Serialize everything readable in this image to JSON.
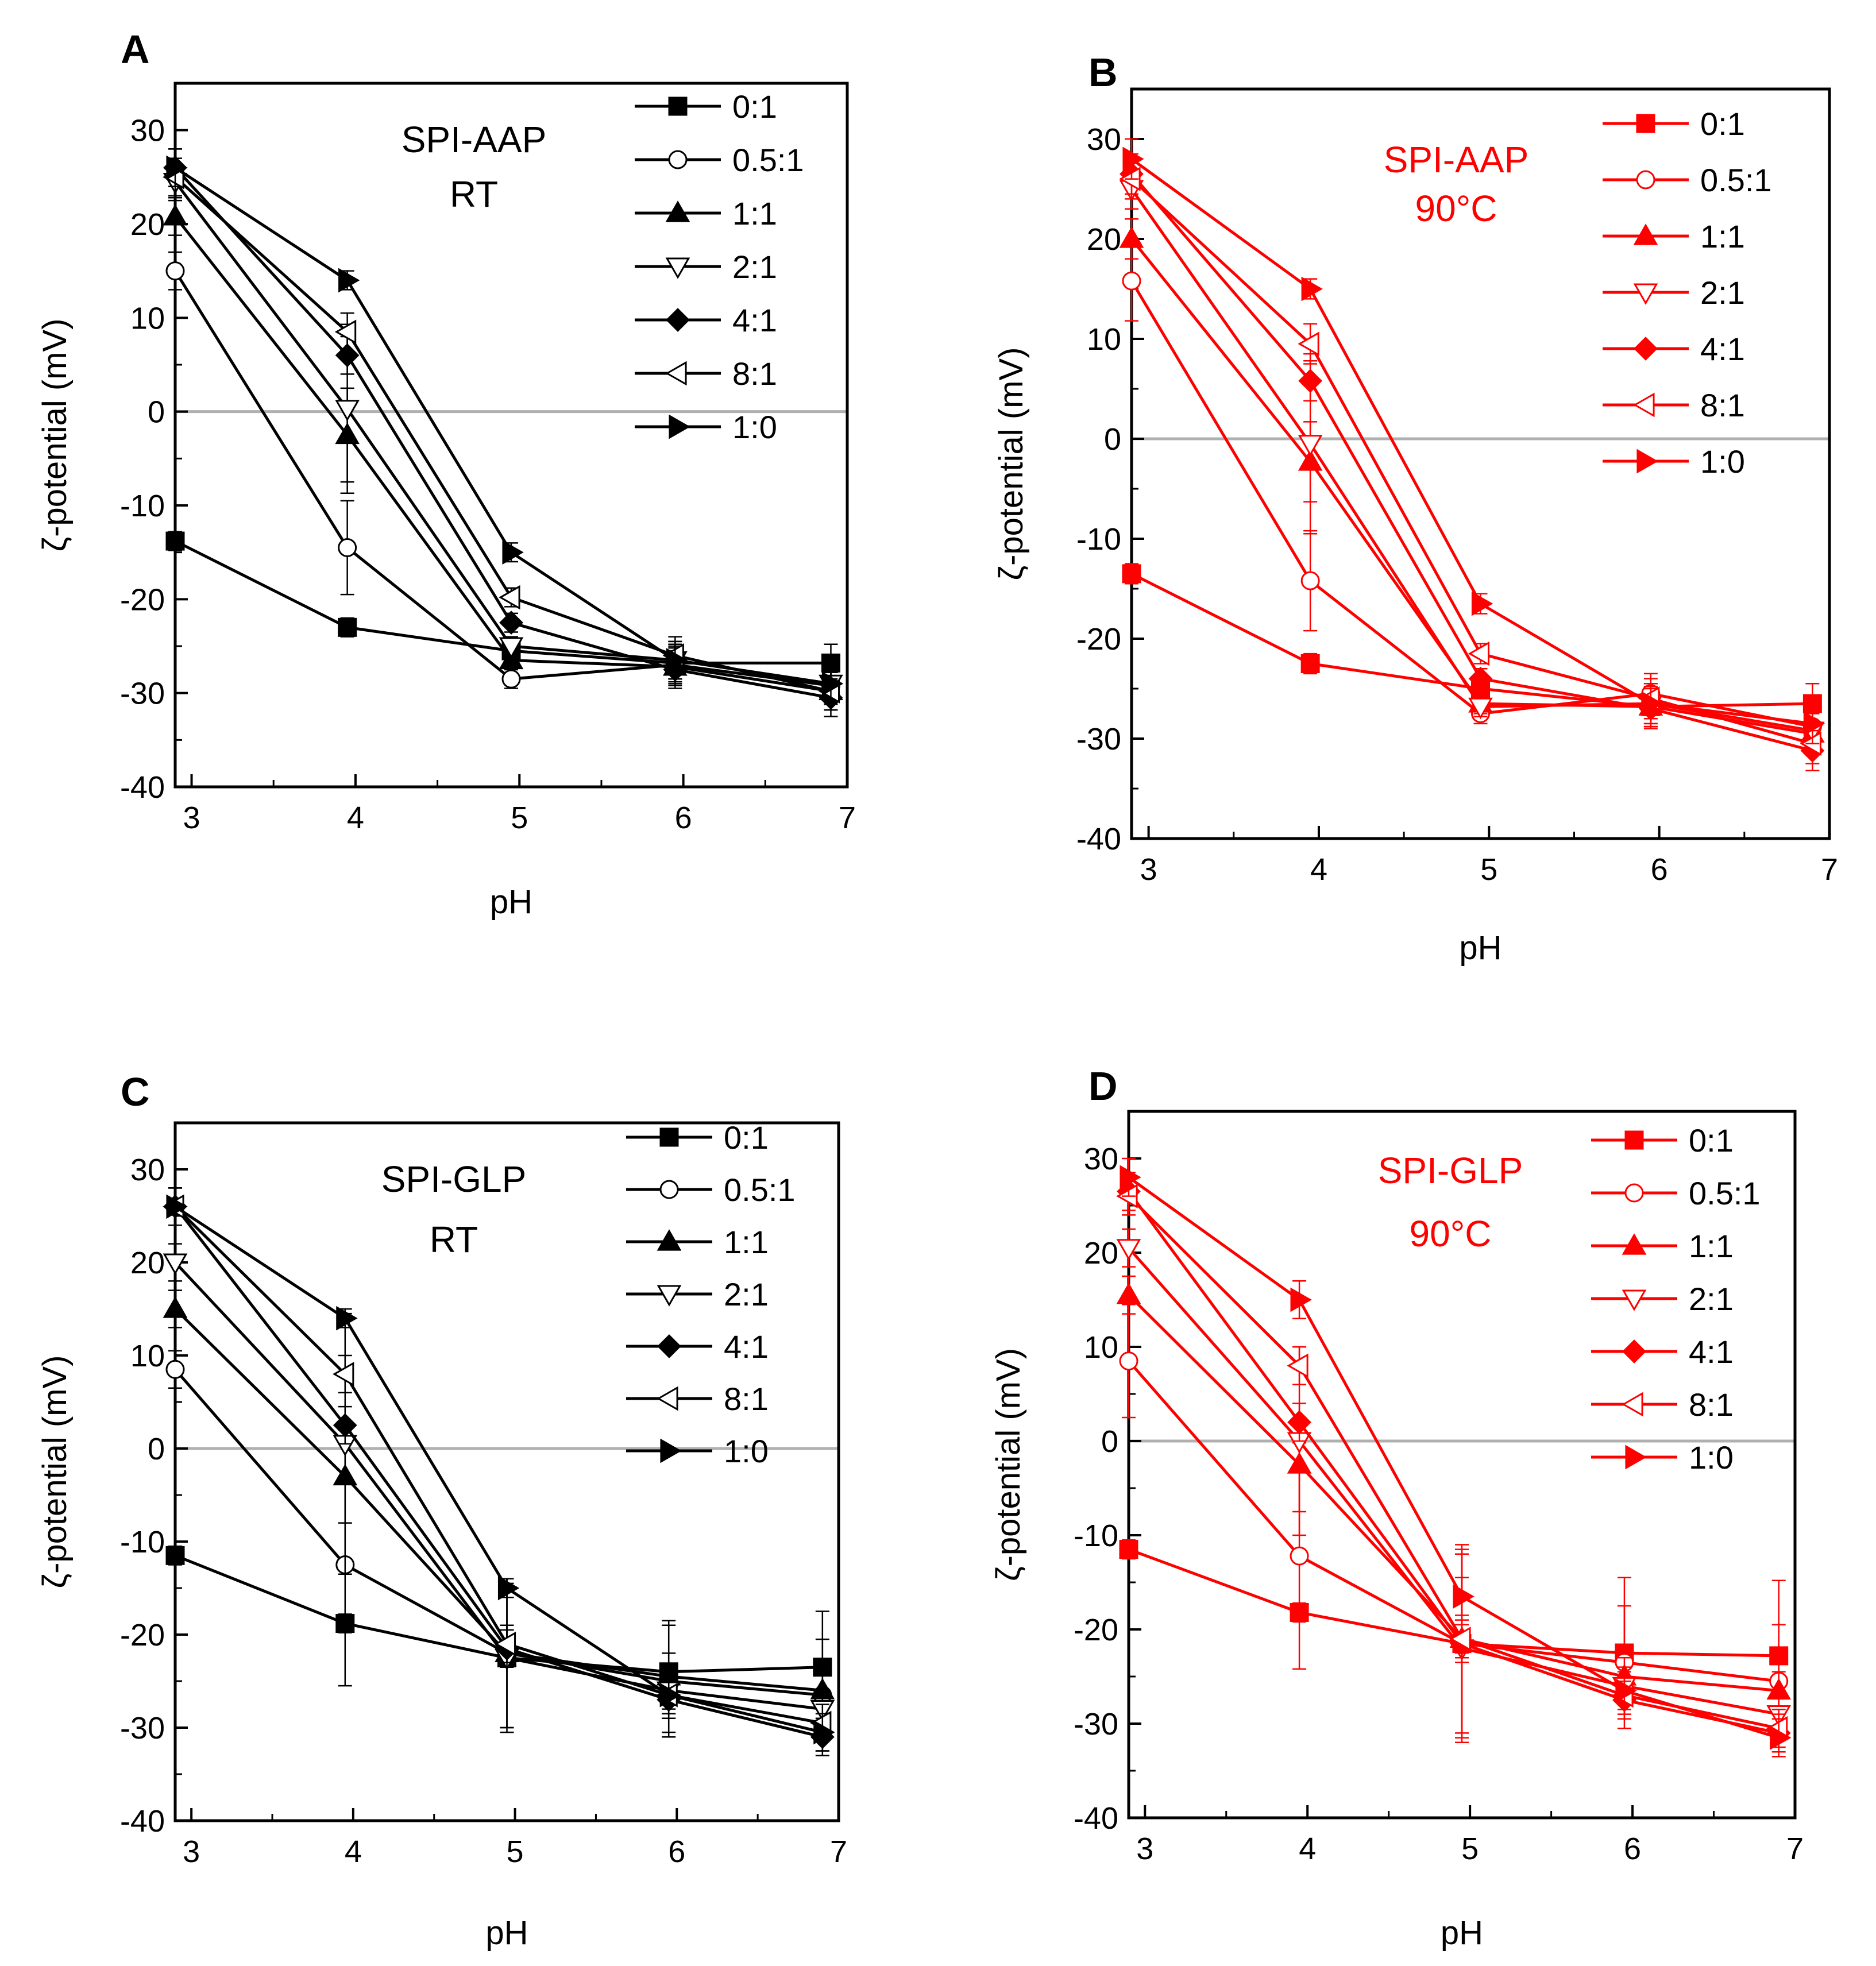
{
  "figure": {
    "panels": [
      {
        "letter": "A",
        "annotation": [
          "SPI-AAP",
          "RT"
        ],
        "color": "#000000"
      },
      {
        "letter": "B",
        "annotation": [
          "SPI-AAP",
          "90°C"
        ],
        "color": "#ff0000"
      },
      {
        "letter": "C",
        "annotation": [
          "SPI-GLP",
          "RT"
        ],
        "color": "#000000"
      },
      {
        "letter": "D",
        "annotation": [
          "SPI-GLP",
          "90°C"
        ],
        "color": "#ff0000"
      }
    ]
  },
  "chart_data": [
    {
      "type": "line",
      "panel": "A",
      "title": "",
      "annotation": [
        "SPI-AAP",
        "RT"
      ],
      "xlabel": "pH",
      "ylabel": "ζ-potential (mV)",
      "xlim": [
        2.9,
        7.0
      ],
      "ylim": [
        -40,
        35
      ],
      "xticks": [
        3,
        4,
        5,
        6,
        7
      ],
      "yticks": [
        -40,
        -30,
        -20,
        -10,
        0,
        10,
        20,
        30
      ],
      "x": [
        2.9,
        3.95,
        4.95,
        5.95,
        6.9
      ],
      "series": [
        {
          "name": "0:1",
          "marker": "square-filled",
          "values": [
            -13.8,
            -23.0,
            -25.5,
            -26.8,
            -26.8
          ],
          "err": [
            1,
            1,
            1,
            2,
            2
          ]
        },
        {
          "name": "0.5:1",
          "marker": "circle-open",
          "values": [
            15.0,
            -14.5,
            -28.5,
            -27.0,
            -29.2
          ],
          "err": [
            2,
            5,
            1,
            2,
            2
          ]
        },
        {
          "name": "1:1",
          "marker": "triangle-up-filled",
          "values": [
            20.8,
            -2.5,
            -26.5,
            -27.2,
            -29.8
          ],
          "err": [
            2,
            5,
            1,
            2,
            2
          ]
        },
        {
          "name": "2:1",
          "marker": "triangle-down-open",
          "values": [
            24.5,
            0.3,
            -25.0,
            -26.5,
            -29.0
          ],
          "err": [
            2,
            9,
            1,
            2,
            2
          ]
        },
        {
          "name": "4:1",
          "marker": "diamond-filled",
          "values": [
            26.0,
            6.0,
            -22.5,
            -27.5,
            -30.5
          ],
          "err": [
            2,
            2,
            1,
            2,
            2
          ]
        },
        {
          "name": "8:1",
          "marker": "triangle-left-open",
          "values": [
            25.0,
            8.5,
            -19.8,
            -26.0,
            -29.8
          ],
          "err": [
            2,
            2,
            1,
            2,
            2
          ]
        },
        {
          "name": "1:0",
          "marker": "triangle-right-filled",
          "values": [
            26.0,
            14.0,
            -15.0,
            -26.5,
            -29.0
          ],
          "err": [
            2,
            1,
            1,
            2,
            2
          ]
        }
      ]
    },
    {
      "type": "line",
      "panel": "B",
      "title": "",
      "annotation": [
        "SPI-AAP",
        "90°C"
      ],
      "xlabel": "pH",
      "ylabel": "ζ-potential (mV)",
      "xlim": [
        2.9,
        7.0
      ],
      "ylim": [
        -40,
        35
      ],
      "xticks": [
        3,
        4,
        5,
        6,
        7
      ],
      "yticks": [
        -40,
        -30,
        -20,
        -10,
        0,
        10,
        20,
        30
      ],
      "x": [
        2.9,
        3.95,
        4.95,
        5.95,
        6.9
      ],
      "series": [
        {
          "name": "0:1",
          "marker": "square-filled",
          "values": [
            -13.5,
            -22.5,
            -25.0,
            -26.8,
            -26.5
          ],
          "err": [
            1,
            1,
            1,
            2,
            2
          ]
        },
        {
          "name": "0.5:1",
          "marker": "circle-open",
          "values": [
            15.8,
            -14.2,
            -27.5,
            -25.5,
            -28.8
          ],
          "err": [
            4,
            5,
            1,
            2,
            2
          ]
        },
        {
          "name": "1:1",
          "marker": "triangle-up-filled",
          "values": [
            20.0,
            -2.3,
            -26.5,
            -26.8,
            -29.5
          ],
          "err": [
            2,
            4,
            1,
            2,
            2
          ]
        },
        {
          "name": "2:1",
          "marker": "triangle-down-open",
          "values": [
            25.0,
            -0.5,
            -26.8,
            -26.5,
            -29.2
          ],
          "err": [
            2,
            9,
            1,
            2,
            2
          ]
        },
        {
          "name": "4:1",
          "marker": "diamond-filled",
          "values": [
            26.5,
            5.8,
            -24.0,
            -27.0,
            -31.2
          ],
          "err": [
            2,
            2,
            1,
            2,
            2
          ]
        },
        {
          "name": "8:1",
          "marker": "triangle-left-open",
          "values": [
            26.0,
            9.5,
            -21.5,
            -26.0,
            -30.5
          ],
          "err": [
            2,
            2,
            1,
            2,
            2
          ]
        },
        {
          "name": "1:0",
          "marker": "triangle-right-filled",
          "values": [
            28.0,
            15.0,
            -16.5,
            -26.5,
            -28.5
          ],
          "err": [
            2,
            1,
            1,
            2,
            2
          ]
        }
      ]
    },
    {
      "type": "line",
      "panel": "C",
      "title": "",
      "annotation": [
        "SPI-GLP",
        "RT"
      ],
      "xlabel": "pH",
      "ylabel": "ζ-potential (mV)",
      "xlim": [
        2.9,
        7.0
      ],
      "ylim": [
        -40,
        35
      ],
      "xticks": [
        3,
        4,
        5,
        6,
        7
      ],
      "yticks": [
        -40,
        -30,
        -20,
        -10,
        0,
        10,
        20,
        30
      ],
      "x": [
        2.9,
        3.95,
        4.95,
        5.95,
        6.9
      ],
      "series": [
        {
          "name": "0:1",
          "marker": "square-filled",
          "values": [
            -11.5,
            -18.8,
            -22.5,
            -24.0,
            -23.5
          ],
          "err": [
            1,
            1,
            1,
            2,
            6
          ]
        },
        {
          "name": "0.5:1",
          "marker": "circle-open",
          "values": [
            8.5,
            -12.5,
            -22.0,
            -25.0,
            -26.5
          ],
          "err": [
            2,
            13,
            8,
            6,
            6
          ]
        },
        {
          "name": "1:1",
          "marker": "triangle-up-filled",
          "values": [
            15.0,
            -3.0,
            -22.0,
            -24.5,
            -26.0
          ],
          "err": [
            2,
            5,
            8,
            6,
            2
          ]
        },
        {
          "name": "2:1",
          "marker": "triangle-down-open",
          "values": [
            20.0,
            0.5,
            -22.5,
            -26.0,
            -28.0
          ],
          "err": [
            2,
            14,
            8,
            2,
            2
          ]
        },
        {
          "name": "4:1",
          "marker": "diamond-filled",
          "values": [
            26.0,
            2.5,
            -21.5,
            -27.0,
            -31.0
          ],
          "err": [
            2,
            2,
            2,
            2,
            2
          ]
        },
        {
          "name": "8:1",
          "marker": "triangle-left-open",
          "values": [
            26.0,
            8.0,
            -21.0,
            -26.5,
            -29.5
          ],
          "err": [
            2,
            2,
            2,
            2,
            2
          ]
        },
        {
          "name": "1:0",
          "marker": "triangle-right-filled",
          "values": [
            26.0,
            14.0,
            -15.0,
            -26.5,
            -30.5
          ],
          "err": [
            2,
            1,
            1,
            2,
            2
          ]
        }
      ]
    },
    {
      "type": "line",
      "panel": "D",
      "title": "",
      "annotation": [
        "SPI-GLP",
        "90°C"
      ],
      "xlabel": "pH",
      "ylabel": "ζ-potential (mV)",
      "xlim": [
        2.9,
        7.0
      ],
      "ylim": [
        -40,
        35
      ],
      "xticks": [
        3,
        4,
        5,
        6,
        7
      ],
      "yticks": [
        -40,
        -30,
        -20,
        -10,
        0,
        10,
        20,
        30
      ],
      "x": [
        2.9,
        3.95,
        4.95,
        5.95,
        6.9
      ],
      "series": [
        {
          "name": "0:1",
          "marker": "square-filled",
          "values": [
            -11.5,
            -18.2,
            -21.5,
            -22.5,
            -22.8
          ],
          "err": [
            1,
            1,
            1,
            8,
            8
          ]
        },
        {
          "name": "0.5:1",
          "marker": "circle-open",
          "values": [
            8.5,
            -12.2,
            -21.5,
            -23.5,
            -25.5
          ],
          "err": [
            6,
            12,
            10,
            6,
            6
          ]
        },
        {
          "name": "1:1",
          "marker": "triangle-up-filled",
          "values": [
            15.5,
            -2.5,
            -21.0,
            -25.0,
            -26.5
          ],
          "err": [
            2,
            5,
            10,
            2,
            2
          ]
        },
        {
          "name": "2:1",
          "marker": "triangle-down-open",
          "values": [
            20.5,
            0.0,
            -22.0,
            -26.0,
            -29.0
          ],
          "err": [
            2,
            10,
            10,
            2,
            2
          ]
        },
        {
          "name": "4:1",
          "marker": "diamond-filled",
          "values": [
            26.5,
            2.0,
            -21.5,
            -27.5,
            -31.0
          ],
          "err": [
            2,
            2,
            2,
            2,
            2
          ]
        },
        {
          "name": "8:1",
          "marker": "triangle-left-open",
          "values": [
            26.0,
            8.0,
            -21.0,
            -27.0,
            -30.5
          ],
          "err": [
            2,
            2,
            2,
            2,
            2
          ]
        },
        {
          "name": "1:0",
          "marker": "triangle-right-filled",
          "values": [
            28.0,
            15.0,
            -16.5,
            -26.5,
            -31.5
          ],
          "err": [
            2,
            2,
            2,
            2,
            2
          ]
        }
      ]
    }
  ]
}
